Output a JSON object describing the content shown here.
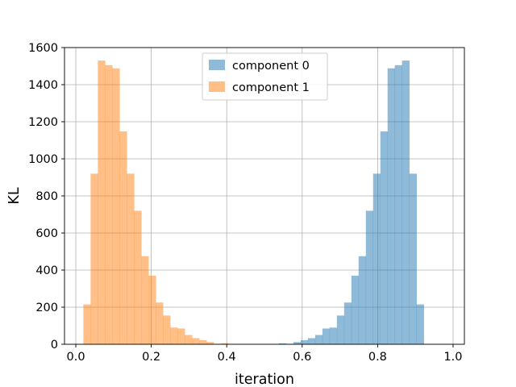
{
  "chart_data": {
    "type": "histogram",
    "title": "",
    "xlabel": "iteration",
    "ylabel": "KL",
    "xlim": [
      -0.03,
      1.03
    ],
    "ylim": [
      0,
      1600
    ],
    "xticks": [
      0.0,
      0.2,
      0.4,
      0.6,
      0.8,
      1.0
    ],
    "xtick_labels": [
      "0.0",
      "0.2",
      "0.4",
      "0.6",
      "0.8",
      "1.0"
    ],
    "yticks": [
      0,
      200,
      400,
      600,
      800,
      1000,
      1200,
      1400,
      1600
    ],
    "ytick_labels": [
      "0",
      "200",
      "400",
      "600",
      "800",
      "1000",
      "1200",
      "1400",
      "1600"
    ],
    "grid": true,
    "legend_position": "top-center",
    "series": [
      {
        "name": "component 0",
        "color": "#1f77b4",
        "alpha": 0.5,
        "bin_start": 0.02,
        "bin_width": 0.0192,
        "counts": [
          0,
          0,
          0,
          0,
          0,
          0,
          0,
          0,
          0,
          0,
          0,
          0,
          0,
          0,
          0,
          0,
          0,
          0,
          0,
          0,
          0,
          0,
          0,
          0,
          0,
          0,
          0,
          5,
          2,
          12,
          22,
          33,
          50,
          85,
          90,
          155,
          225,
          370,
          475,
          720,
          920,
          1148,
          1488,
          1505,
          1530,
          920,
          215
        ]
      },
      {
        "name": "component 1",
        "color": "#ff7f0e",
        "alpha": 0.5,
        "bin_start": 0.02,
        "bin_width": 0.0192,
        "counts": [
          215,
          920,
          1530,
          1505,
          1488,
          1148,
          920,
          720,
          475,
          370,
          225,
          155,
          90,
          85,
          50,
          33,
          22,
          12,
          2,
          5,
          0,
          0,
          0,
          0,
          0,
          0,
          0,
          0,
          0,
          0,
          0,
          0,
          0,
          0,
          0,
          0,
          0,
          0,
          0,
          0,
          0,
          0,
          0,
          0,
          0,
          0,
          0
        ]
      }
    ]
  }
}
